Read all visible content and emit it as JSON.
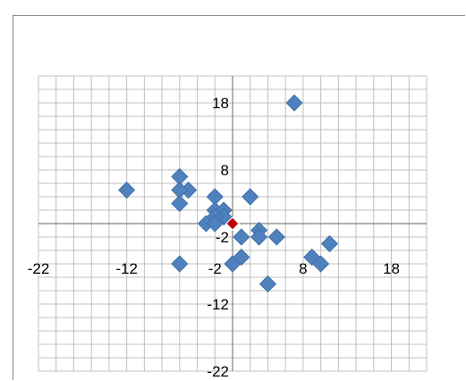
{
  "chart_data": {
    "type": "scatter",
    "title": "",
    "xlabel": "",
    "ylabel": "",
    "xlim": [
      -22,
      22
    ],
    "ylim": [
      -22,
      22
    ],
    "grid": true,
    "legend": "none",
    "x_ticks": [
      "-22",
      "-12",
      "-2",
      "8",
      "18"
    ],
    "y_ticks": [
      "18",
      "8",
      "-2",
      "-12",
      "-22"
    ],
    "colors": {
      "points": "#4f81bd",
      "highlight": "#c00000",
      "grid": "#c0c0c0",
      "axis": "#808080"
    },
    "series": [
      {
        "values": [
          [
            7,
            18
          ],
          [
            -12,
            5
          ],
          [
            -6,
            7
          ],
          [
            -5,
            5
          ],
          [
            -6,
            5
          ],
          [
            -6,
            3
          ],
          [
            2,
            4
          ],
          [
            -2,
            4
          ],
          [
            -2,
            2
          ],
          [
            -1,
            2
          ],
          [
            -1,
            1
          ],
          [
            -2,
            1
          ],
          [
            -3,
            0
          ],
          [
            -2,
            0
          ],
          [
            1,
            -2
          ],
          [
            3,
            -1
          ],
          [
            3,
            -2
          ],
          [
            5,
            -2
          ],
          [
            1,
            -5
          ],
          [
            11,
            -3
          ],
          [
            9,
            -5
          ],
          [
            10,
            -6
          ],
          [
            0,
            -6
          ],
          [
            4,
            -9
          ],
          [
            -6,
            -6
          ]
        ]
      },
      {
        "values": [
          [
            0,
            0
          ]
        ]
      }
    ]
  }
}
